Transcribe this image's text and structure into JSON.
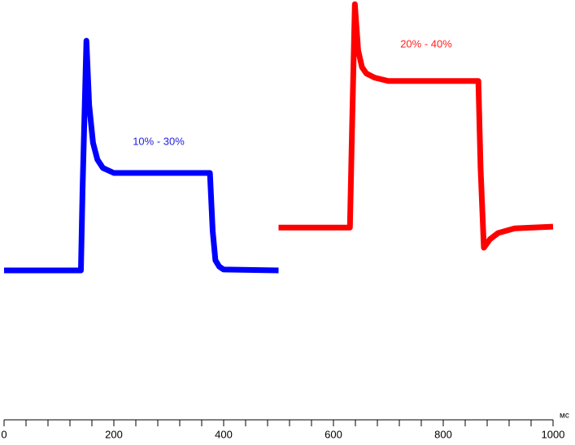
{
  "chart_data": {
    "type": "line",
    "x_label": "мс",
    "xlim": [
      0,
      1000
    ],
    "xticks": [
      0,
      200,
      400,
      600,
      800,
      1000
    ],
    "xminorticks": [
      40,
      80,
      120,
      160,
      240,
      280,
      320,
      360,
      440,
      480,
      520,
      560,
      640,
      680,
      720,
      760,
      840,
      880,
      920,
      960
    ],
    "ylim": [
      0,
      100
    ],
    "annotations": [
      {
        "text": "10% - 30%",
        "color": "#2020e0"
      },
      {
        "text": "20% - 40%",
        "color": "#ff2020"
      }
    ],
    "series": [
      {
        "name": "10% - 30%",
        "color": "#0000ff",
        "x": [
          0,
          140,
          143,
          150,
          155,
          162,
          170,
          180,
          200,
          375,
          380,
          385,
          392,
          400,
          500
        ],
        "values": [
          35.6,
          35.6,
          55,
          90.3,
          75,
          66,
          62,
          60,
          58.8,
          58.8,
          45,
          38,
          36.5,
          35.8,
          35.6
        ]
      },
      {
        "name": "20% - 40%",
        "color": "#ff0000",
        "x": [
          500,
          630,
          634,
          639,
          645,
          652,
          660,
          675,
          700,
          864,
          868,
          874,
          885,
          900,
          930,
          1000
        ],
        "values": [
          45.8,
          45.8,
          70,
          99,
          88,
          84,
          82.5,
          81.5,
          80.7,
          80.7,
          60,
          41,
          43,
          44.5,
          45.6,
          46
        ]
      }
    ]
  }
}
